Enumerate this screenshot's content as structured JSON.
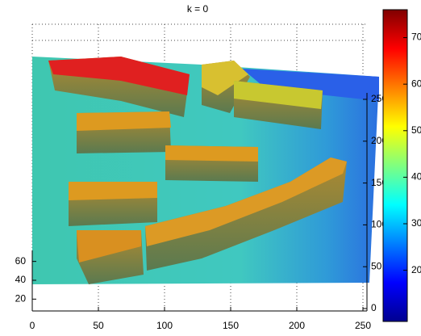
{
  "chart_data": {
    "type": "surface",
    "title": "k = 0",
    "xlim": [
      0,
      250
    ],
    "xticks": [
      0,
      50,
      100,
      150,
      200,
      250
    ],
    "ylim": [
      10,
      70
    ],
    "yticks": [
      20,
      40,
      60
    ],
    "zlim": [
      0,
      250
    ],
    "zticks": [
      0,
      50,
      100,
      150,
      200,
      250
    ],
    "clim": [
      9,
      76
    ],
    "cticks": [
      20,
      30,
      40,
      50,
      60,
      70
    ],
    "colormap": "jet",
    "grid": true
  }
}
